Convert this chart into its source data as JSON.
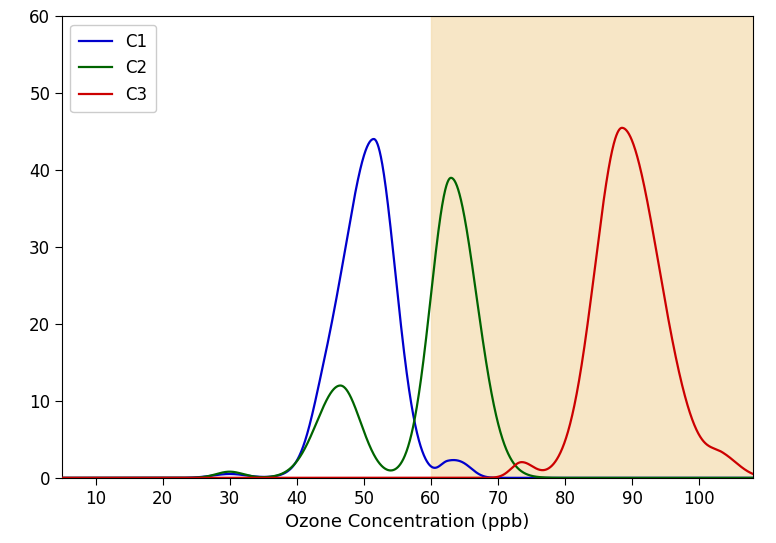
{
  "xlabel": "Ozone Concentration (ppb)",
  "xlim": [
    5,
    108
  ],
  "ylim": [
    0,
    60
  ],
  "xticks": [
    10,
    20,
    30,
    40,
    50,
    60,
    70,
    80,
    90,
    100
  ],
  "yticks": [
    0,
    10,
    20,
    30,
    40,
    50,
    60
  ],
  "shade_start": 60,
  "shade_color": "#F5DEB3",
  "shade_alpha": 0.75,
  "background_color": "#ffffff",
  "c1_color": "#0000CC",
  "c2_color": "#006400",
  "c3_color": "#CC0000",
  "c1_label": "C1",
  "c2_label": "C2",
  "c3_label": "C3",
  "linewidth": 1.6,
  "c1_components": [
    {
      "mu": 51.5,
      "sigma_l": 4.5,
      "sigma_r": 3.2,
      "amp": 44
    },
    {
      "mu": 44.0,
      "sigma_l": 2.0,
      "sigma_r": 2.5,
      "amp": 4.0
    },
    {
      "mu": 62.5,
      "sigma_l": 1.2,
      "sigma_r": 1.8,
      "amp": 1.8
    },
    {
      "mu": 65.0,
      "sigma_l": 1.5,
      "sigma_r": 1.5,
      "amp": 1.2
    },
    {
      "mu": 30.0,
      "sigma_l": 2.5,
      "sigma_r": 2.5,
      "amp": 0.5
    }
  ],
  "c2_components": [
    {
      "mu": 46.5,
      "sigma_l": 3.5,
      "sigma_r": 3.0,
      "amp": 12.0
    },
    {
      "mu": 63.0,
      "sigma_l": 3.0,
      "sigma_r": 3.8,
      "amp": 39.0
    },
    {
      "mu": 30.0,
      "sigma_l": 2.0,
      "sigma_r": 2.0,
      "amp": 0.8
    }
  ],
  "c3_components": [
    {
      "mu": 88.5,
      "sigma_l": 4.0,
      "sigma_r": 5.5,
      "amp": 45.5
    },
    {
      "mu": 73.5,
      "sigma_l": 1.5,
      "sigma_r": 1.8,
      "amp": 2.0
    },
    {
      "mu": 103.5,
      "sigma_l": 2.0,
      "sigma_r": 2.5,
      "amp": 2.2
    }
  ]
}
